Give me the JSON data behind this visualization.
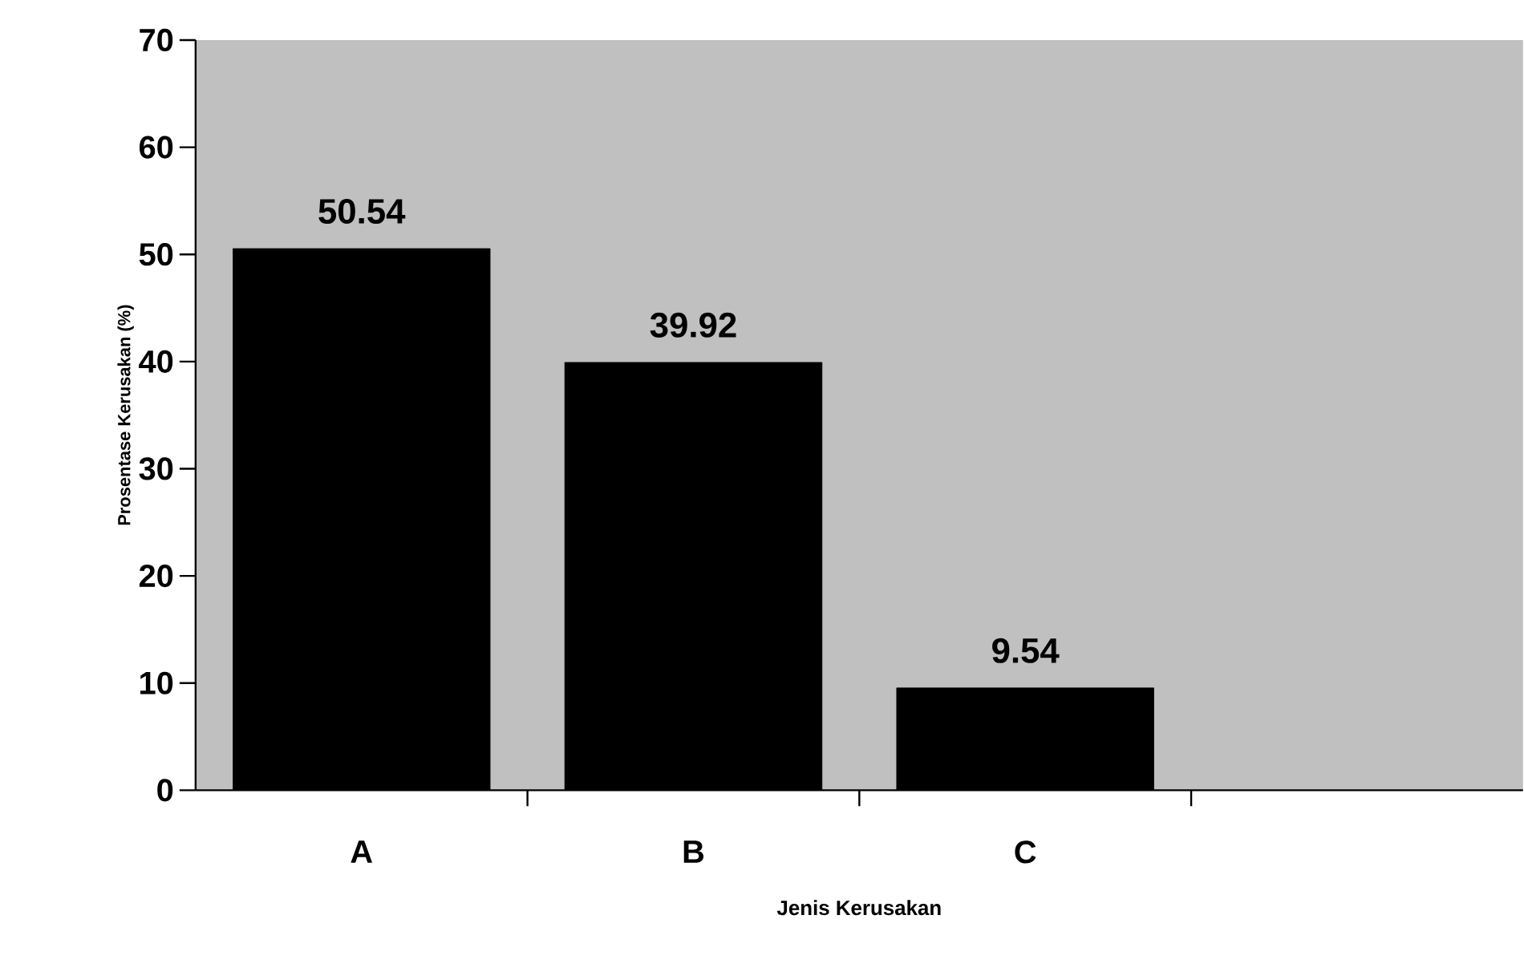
{
  "chart_data": {
    "type": "bar",
    "xlabel": "Jenis Kerusakan",
    "ylabel": "Prosentase Kerusakan (%)",
    "categories": [
      "A",
      "B",
      "C",
      null
    ],
    "values": [
      50.54,
      39.92,
      9.54,
      null
    ],
    "color": "#000000",
    "ylim": [
      0,
      70
    ],
    "yticks": [
      0,
      10,
      20,
      30,
      40,
      50,
      60,
      70
    ],
    "data_labels": true
  }
}
